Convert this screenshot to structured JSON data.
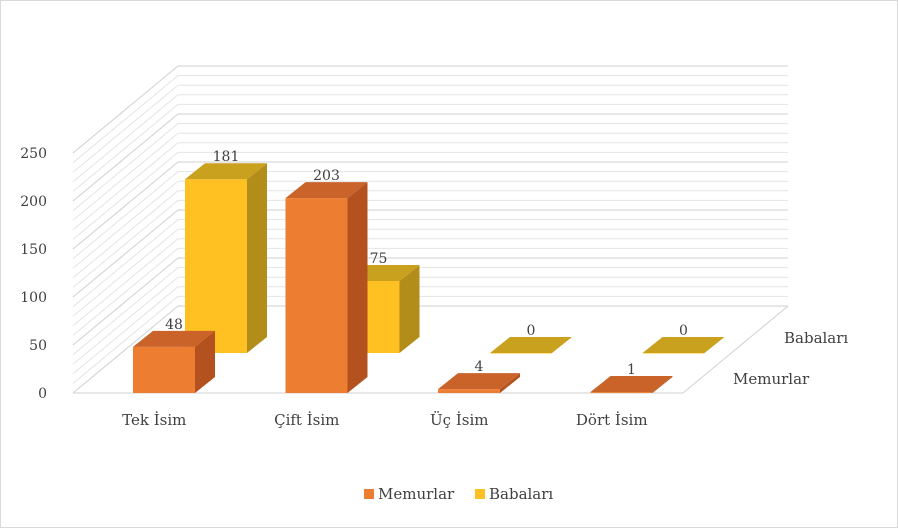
{
  "chart_data": {
    "type": "bar",
    "style": "3d-clustered-columns",
    "title": "",
    "categories": [
      "Tek İsim",
      "Çift İsim",
      "Üç İsim",
      "Dört İsim"
    ],
    "series": [
      {
        "name": "Memurlar",
        "values": [
          48,
          203,
          4,
          1
        ],
        "color": "#ED7D31",
        "color_dark": "#B4521F"
      },
      {
        "name": "Babaları",
        "values": [
          181,
          75,
          0,
          0
        ],
        "color": "#FFC022",
        "color_dark": "#B38D1A"
      }
    ],
    "ylim": [
      0,
      250
    ],
    "yticks": [
      "0",
      "50",
      "100",
      "150",
      "200",
      "250"
    ],
    "grid": true,
    "legend_position": "bottom"
  }
}
